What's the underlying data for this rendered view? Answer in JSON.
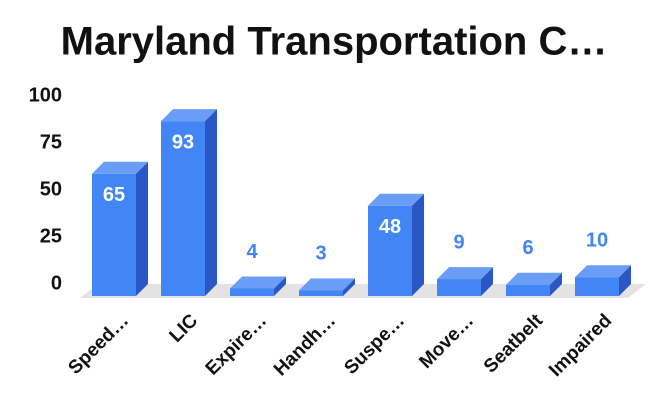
{
  "chart_data": {
    "type": "bar3d",
    "title": "Maryland Transportation C…",
    "categories": [
      "Speed…",
      "LIC",
      "Expire…",
      "Handh…",
      "Suspe…",
      "Move…",
      "Seatbelt",
      "Impaired"
    ],
    "values": [
      65,
      93,
      4,
      3,
      48,
      9,
      6,
      10
    ],
    "color": "#4285f4",
    "ylim": [
      0,
      100
    ],
    "yticks": [
      0,
      25,
      50,
      75,
      100
    ]
  }
}
